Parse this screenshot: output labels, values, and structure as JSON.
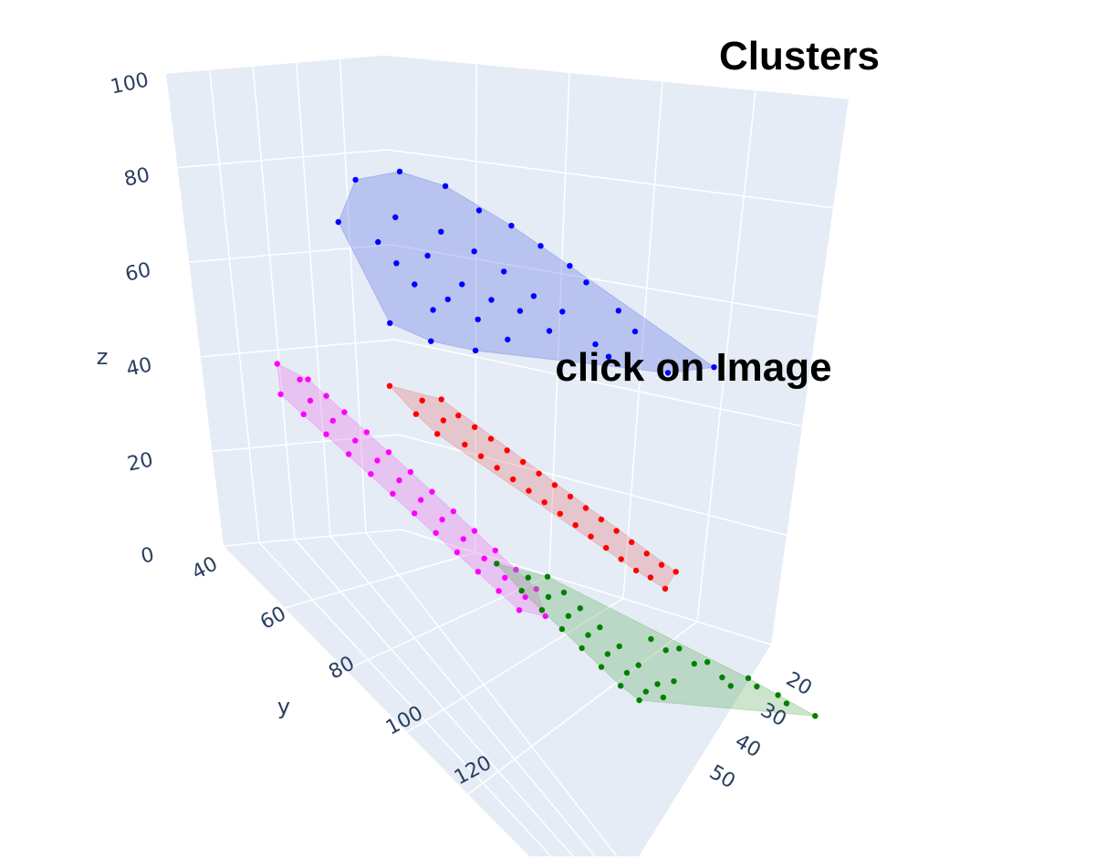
{
  "chart_data": {
    "type": "scatter",
    "dimensions": "3d",
    "title": "Clusters",
    "annotation": "click on Image",
    "title_color": "#fba982",
    "plot_background": "#e5ecf6",
    "grid_color": "#ffffff",
    "axes": {
      "x": {
        "label": "",
        "ticks": [
          "20",
          "30",
          "40",
          "50"
        ],
        "range": [
          15,
          55
        ]
      },
      "y": {
        "label": "y",
        "ticks": [
          "40",
          "60",
          "80",
          "100",
          "120"
        ],
        "range": [
          35,
          125
        ]
      },
      "z": {
        "label": "z",
        "ticks": [
          "0",
          "20",
          "40",
          "60",
          "80",
          "100"
        ],
        "range": [
          0,
          100
        ]
      }
    },
    "series": [
      {
        "color": "#0000ff",
        "hull_color": "rgba(100,120,230,0.35)",
        "points": [
          [
            45,
            56,
            96
          ],
          [
            42,
            58,
            94
          ],
          [
            48,
            54,
            93
          ],
          [
            40,
            60,
            90
          ],
          [
            38,
            62,
            88
          ],
          [
            46,
            57,
            87
          ],
          [
            43,
            59,
            85
          ],
          [
            36,
            63,
            84
          ],
          [
            41,
            61,
            82
          ],
          [
            34,
            64,
            80
          ],
          [
            47,
            55,
            80
          ],
          [
            44,
            58,
            79
          ],
          [
            39,
            62,
            78
          ],
          [
            33,
            65,
            77
          ],
          [
            46,
            56,
            76
          ],
          [
            42,
            60,
            74
          ],
          [
            37,
            63,
            73
          ],
          [
            31,
            67,
            72
          ],
          [
            45,
            57,
            72
          ],
          [
            40,
            61,
            71
          ],
          [
            35,
            64,
            70
          ],
          [
            43,
            59,
            70
          ],
          [
            38,
            62,
            69
          ],
          [
            30,
            68,
            68
          ],
          [
            44,
            58,
            67
          ],
          [
            41,
            60,
            66
          ],
          [
            36,
            63,
            65
          ],
          [
            33,
            66,
            64
          ],
          [
            47,
            56,
            63
          ],
          [
            39,
            61,
            62
          ],
          [
            32,
            66,
            61
          ],
          [
            28,
            70,
            60
          ],
          [
            25,
            75,
            65
          ],
          [
            45,
            60,
            62
          ],
          [
            42,
            62,
            61
          ],
          [
            50,
            55,
            85
          ]
        ]
      },
      {
        "color": "#ff0000",
        "hull_color": "rgba(230,110,110,0.30)",
        "points": [
          [
            52,
            70,
            62
          ],
          [
            50,
            72,
            60
          ],
          [
            48,
            71,
            59
          ],
          [
            51,
            73,
            58
          ],
          [
            49,
            74,
            57
          ],
          [
            47,
            72,
            56
          ],
          [
            50,
            75,
            55
          ],
          [
            46,
            73,
            54
          ],
          [
            48,
            76,
            53
          ],
          [
            45,
            74,
            52
          ],
          [
            47,
            77,
            51
          ],
          [
            44,
            75,
            50
          ],
          [
            46,
            78,
            49
          ],
          [
            43,
            76,
            48
          ],
          [
            45,
            79,
            47
          ],
          [
            42,
            77,
            46
          ],
          [
            44,
            80,
            45
          ],
          [
            41,
            78,
            44
          ],
          [
            43,
            81,
            43
          ],
          [
            40,
            79,
            42
          ],
          [
            42,
            82,
            41
          ],
          [
            39,
            80,
            40
          ],
          [
            41,
            83,
            39
          ],
          [
            38,
            81,
            38
          ],
          [
            40,
            84,
            37
          ],
          [
            37,
            82,
            36
          ],
          [
            39,
            85,
            35
          ],
          [
            36,
            83,
            34
          ],
          [
            38,
            86,
            33
          ],
          [
            35,
            84,
            32
          ],
          [
            37,
            87,
            31
          ],
          [
            34,
            85,
            30
          ],
          [
            36,
            88,
            30
          ],
          [
            33,
            86,
            29
          ],
          [
            35,
            89,
            28
          ]
        ]
      },
      {
        "color": "#ff00ff",
        "hull_color": "rgba(235,120,235,0.35)",
        "points": [
          [
            56,
            55,
            55
          ],
          [
            55,
            57,
            53
          ],
          [
            54,
            56,
            52
          ],
          [
            57,
            58,
            51
          ],
          [
            55,
            59,
            50
          ],
          [
            53,
            57,
            49
          ],
          [
            56,
            60,
            48
          ],
          [
            54,
            61,
            47
          ],
          [
            52,
            58,
            46
          ],
          [
            55,
            62,
            45
          ],
          [
            53,
            63,
            44
          ],
          [
            51,
            60,
            43
          ],
          [
            54,
            64,
            42
          ],
          [
            52,
            65,
            41
          ],
          [
            50,
            62,
            40
          ],
          [
            53,
            66,
            39
          ],
          [
            51,
            67,
            38
          ],
          [
            49,
            64,
            37
          ],
          [
            52,
            68,
            36
          ],
          [
            50,
            69,
            35
          ],
          [
            48,
            66,
            34
          ],
          [
            51,
            70,
            33
          ],
          [
            49,
            71,
            32
          ],
          [
            47,
            68,
            31
          ],
          [
            50,
            72,
            30
          ],
          [
            48,
            73,
            29
          ],
          [
            46,
            70,
            28
          ],
          [
            49,
            74,
            27
          ],
          [
            47,
            75,
            26
          ],
          [
            45,
            72,
            25
          ],
          [
            48,
            76,
            24
          ],
          [
            46,
            77,
            23
          ],
          [
            44,
            74,
            22
          ],
          [
            47,
            78,
            21
          ],
          [
            45,
            79,
            20
          ],
          [
            43,
            76,
            19
          ],
          [
            46,
            80,
            18
          ],
          [
            44,
            81,
            17
          ]
        ]
      },
      {
        "color": "#008000",
        "hull_color": "rgba(110,180,110,0.35)",
        "points": [
          [
            45,
            72,
            22
          ],
          [
            43,
            74,
            20
          ],
          [
            41,
            73,
            19
          ],
          [
            44,
            75,
            18
          ],
          [
            42,
            76,
            17
          ],
          [
            40,
            74,
            16
          ],
          [
            43,
            77,
            15
          ],
          [
            41,
            78,
            14
          ],
          [
            39,
            75,
            13
          ],
          [
            42,
            79,
            12
          ],
          [
            40,
            80,
            11
          ],
          [
            38,
            77,
            10
          ],
          [
            41,
            81,
            9
          ],
          [
            39,
            82,
            8
          ],
          [
            37,
            79,
            7
          ],
          [
            40,
            83,
            6
          ],
          [
            38,
            84,
            5
          ],
          [
            36,
            81,
            4
          ],
          [
            39,
            85,
            3
          ],
          [
            37,
            86,
            2
          ],
          [
            35,
            83,
            1
          ],
          [
            38,
            87,
            1
          ],
          [
            36,
            88,
            2
          ],
          [
            34,
            85,
            3
          ],
          [
            30,
            90,
            5
          ],
          [
            28,
            92,
            6
          ],
          [
            26,
            95,
            4
          ],
          [
            24,
            98,
            3
          ],
          [
            27,
            96,
            7
          ],
          [
            29,
            93,
            9
          ],
          [
            31,
            91,
            8
          ],
          [
            33,
            89,
            10
          ],
          [
            35,
            87,
            12
          ],
          [
            32,
            90,
            11
          ],
          [
            34,
            88,
            13
          ],
          [
            36,
            86,
            14
          ]
        ]
      }
    ]
  }
}
